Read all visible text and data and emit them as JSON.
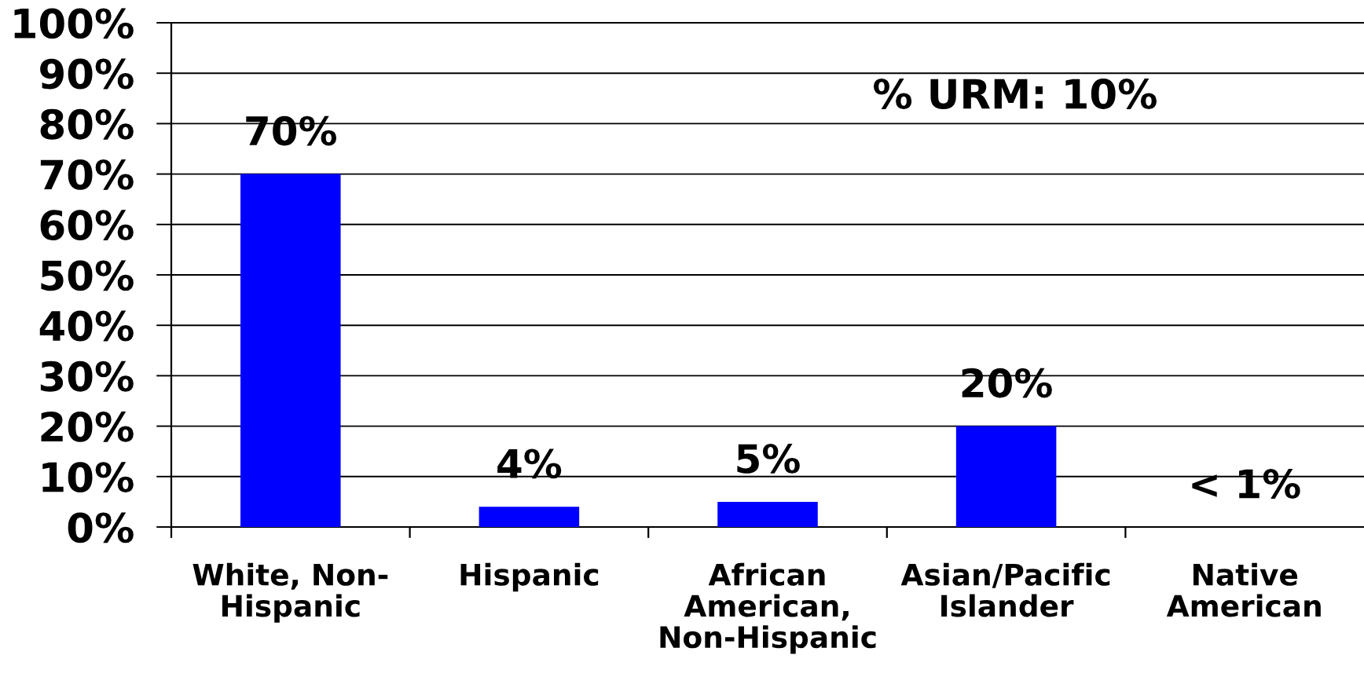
{
  "chart_data": {
    "type": "bar",
    "categories": [
      "White, Non-\nHispanic",
      "Hispanic",
      "African\nAmerican,\nNon-Hispanic",
      "Asian/Pacific\nIslander",
      "Native\nAmerican"
    ],
    "values": [
      70,
      4,
      5,
      20,
      0
    ],
    "color": "#0000ff",
    "value_labels": [
      "70%",
      "4%",
      "5%",
      "20%",
      "< 1%"
    ],
    "ylim": [
      0,
      100
    ],
    "yticks": [
      {
        "value": 0,
        "label": "0%"
      },
      {
        "value": 10,
        "label": "10%"
      },
      {
        "value": 20,
        "label": "20%"
      },
      {
        "value": 30,
        "label": "30%"
      },
      {
        "value": 40,
        "label": "40%"
      },
      {
        "value": 50,
        "label": "50%"
      },
      {
        "value": 60,
        "label": "60%"
      },
      {
        "value": 70,
        "label": "70%"
      },
      {
        "value": 80,
        "label": "80%"
      },
      {
        "value": 90,
        "label": "90%"
      },
      {
        "value": 100,
        "label": "100%"
      }
    ],
    "grid": "y",
    "annotations": [
      "% URM: 10%"
    ]
  }
}
